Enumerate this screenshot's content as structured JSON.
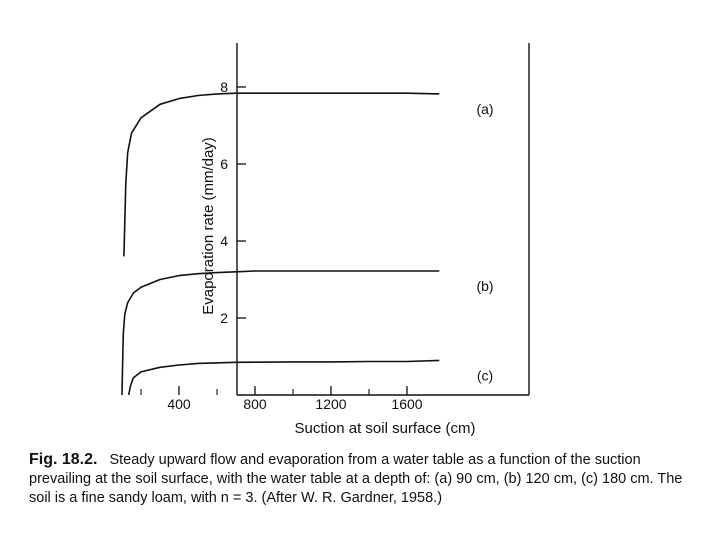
{
  "chart_data": {
    "type": "line",
    "xlabel": "Suction at soil surface (cm)",
    "ylabel": "Evaporation rate (mm/day)",
    "xlim": [
      0,
      1800
    ],
    "ylim": [
      0,
      9
    ],
    "x_ticks": [
      400,
      800,
      1200,
      1600
    ],
    "y_ticks": [
      2,
      4,
      6,
      8
    ],
    "grid": false,
    "series": [
      {
        "name": "(a)",
        "x": [
          110,
          115,
          120,
          130,
          150,
          200,
          300,
          400,
          500,
          600,
          700,
          800,
          1000,
          1200,
          1400,
          1600,
          1770
        ],
        "y": [
          3.6,
          4.5,
          5.5,
          6.3,
          6.8,
          7.2,
          7.55,
          7.7,
          7.78,
          7.82,
          7.84,
          7.84,
          7.84,
          7.84,
          7.84,
          7.84,
          7.82
        ]
      },
      {
        "name": "(b)",
        "x": [
          100,
          103,
          107,
          115,
          130,
          160,
          200,
          300,
          400,
          500,
          600,
          700,
          800,
          1000,
          1200,
          1400,
          1600,
          1770
        ],
        "y": [
          0,
          0.8,
          1.6,
          2.1,
          2.4,
          2.65,
          2.8,
          3.0,
          3.1,
          3.15,
          3.18,
          3.2,
          3.22,
          3.22,
          3.22,
          3.22,
          3.22,
          3.22
        ]
      },
      {
        "name": "(c)",
        "x": [
          135,
          145,
          160,
          200,
          300,
          400,
          500,
          700,
          1000,
          1200,
          1400,
          1600,
          1770
        ],
        "y": [
          0,
          0.25,
          0.45,
          0.6,
          0.72,
          0.78,
          0.82,
          0.85,
          0.86,
          0.86,
          0.87,
          0.87,
          0.9
        ]
      }
    ]
  },
  "caption": {
    "label": "Fig. 18.2.",
    "text": "Steady upward flow and evaporation from a water table as a function of the suction prevailing at the soil surface, with the water table at a depth of: (a) 90 cm, (b) 120 cm, (c) 180 cm. The soil is a fine sandy loam, with n = 3. (After W. R. Gardner, 1958.)"
  },
  "colors": {
    "ink": "#111111",
    "background": "#ffffff"
  }
}
